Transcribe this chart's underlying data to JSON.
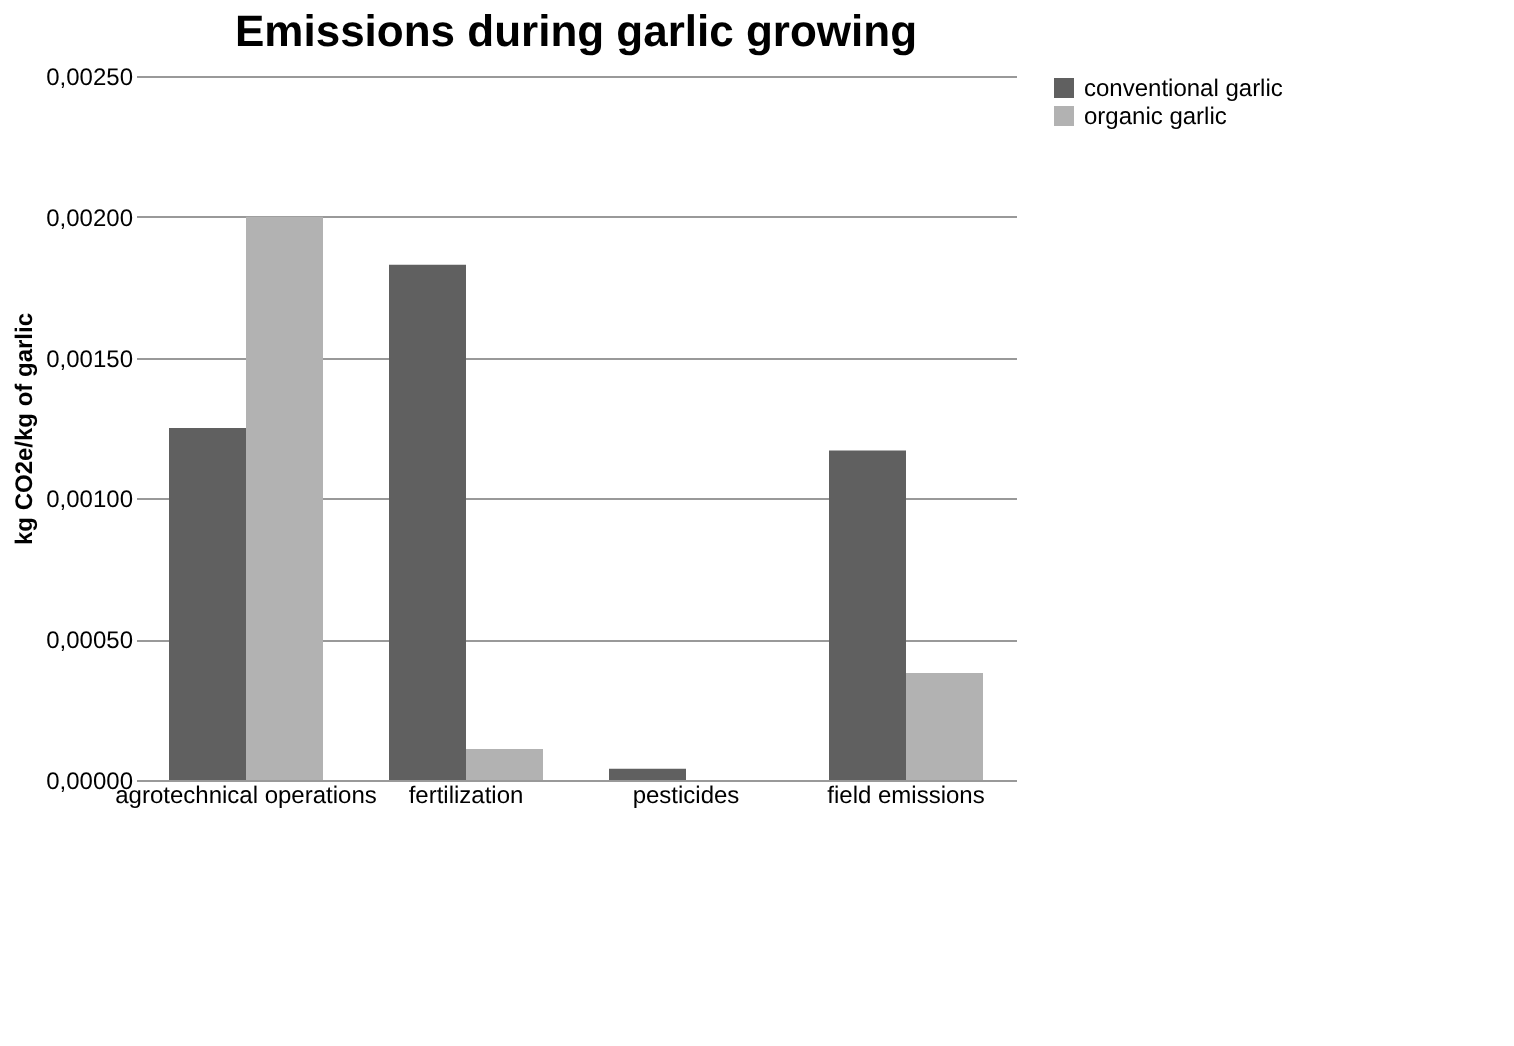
{
  "chart_data": {
    "type": "bar",
    "title": "Emissions during garlic growing",
    "ylabel": "kg CO2e/kg of garlic",
    "categories": [
      "agrotechnical operations",
      "fertilization",
      "pesticides",
      "field emissions"
    ],
    "series": [
      {
        "name": "conventional garlic",
        "color": "#606060",
        "values": [
          0.00125,
          0.00183,
          4e-05,
          0.00117
        ]
      },
      {
        "name": "organic garlic",
        "color": "#b2b2b2",
        "values": [
          0.002,
          0.00011,
          0,
          0.00038
        ]
      }
    ],
    "ylim": [
      0,
      0.0025
    ],
    "yticks": [
      {
        "value": 0,
        "label": "0,00000"
      },
      {
        "value": 0.0005,
        "label": "0,00050"
      },
      {
        "value": 0.001,
        "label": "0,00100"
      },
      {
        "value": 0.0015,
        "label": "0,00150"
      },
      {
        "value": 0.002,
        "label": "0,00200"
      },
      {
        "value": 0.0025,
        "label": "0,00250"
      }
    ],
    "grid": "y",
    "legend": "right"
  }
}
